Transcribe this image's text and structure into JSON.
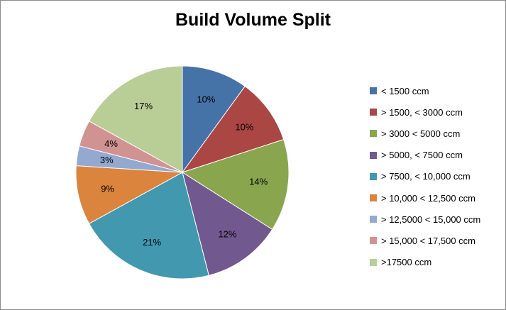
{
  "chart_data": {
    "type": "pie",
    "title": "Build Volume Split",
    "categories": [
      "< 1500 ccm",
      "> 1500, < 3000 ccm",
      "> 3000 < 5000 ccm",
      "> 5000, < 7500 ccm",
      "> 7500, < 10,000 ccm",
      "> 10,000 < 12,500 ccm",
      "> 12,5000 < 15,000 ccm",
      "> 15,000 < 17,500 ccm",
      ">17500 ccm"
    ],
    "values": [
      10,
      10,
      14,
      12,
      21,
      9,
      3,
      4,
      17
    ],
    "data_labels": [
      "10%",
      "10%",
      "14%",
      "12%",
      "21%",
      "9%",
      "3%",
      "4%",
      "17%"
    ],
    "colors": [
      "#4572A7",
      "#AA4643",
      "#89A54E",
      "#71588F",
      "#4198AF",
      "#DB843D",
      "#93A9CF",
      "#D19392",
      "#B9CD96"
    ],
    "legend_position": "right"
  }
}
